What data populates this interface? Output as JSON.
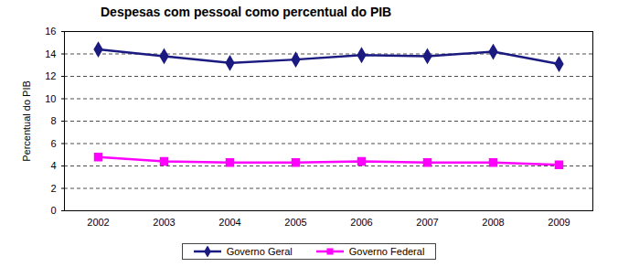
{
  "chart_data": {
    "type": "line",
    "title": "Despesas com pessoal como percentual do PIB",
    "y_label": "Percentual do PIB",
    "categories": [
      "2002",
      "2003",
      "2004",
      "2005",
      "2006",
      "2007",
      "2008",
      "2009"
    ],
    "series": [
      {
        "name": "Governo Geral",
        "color": "#1a1a80",
        "marker": "diamond",
        "values": [
          14.4,
          13.8,
          13.2,
          13.5,
          13.9,
          13.8,
          14.2,
          13.1
        ]
      },
      {
        "name": "Governo Federal",
        "color": "#ff00ff",
        "marker": "square",
        "values": [
          4.8,
          4.4,
          4.3,
          4.3,
          4.4,
          4.3,
          4.3,
          4.1
        ]
      }
    ],
    "ylim": [
      0,
      16
    ],
    "yticks": [
      0,
      2,
      4,
      6,
      8,
      10,
      12,
      14,
      16
    ],
    "grid": true,
    "legend": "bottom"
  }
}
